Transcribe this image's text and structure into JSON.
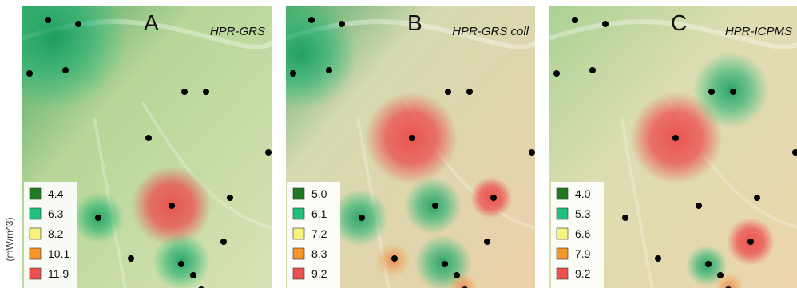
{
  "unit_label": "(mW/m^3)",
  "panels": [
    {
      "letter": "A",
      "title": "HPR-GRS",
      "legend": [
        {
          "label": "4.4",
          "color": "#1f7a22"
        },
        {
          "label": "6.3",
          "color": "#22c07a"
        },
        {
          "label": "8.2",
          "color": "#f6f27c"
        },
        {
          "label": "10.1",
          "color": "#f5952a"
        },
        {
          "label": "11.9",
          "color": "#ec5050"
        }
      ]
    },
    {
      "letter": "B",
      "title": "HPR-GRS coll",
      "legend": [
        {
          "label": "5.0",
          "color": "#1f7a22"
        },
        {
          "label": "6.1",
          "color": "#22c07a"
        },
        {
          "label": "7.2",
          "color": "#f6f27c"
        },
        {
          "label": "8.3",
          "color": "#f5952a"
        },
        {
          "label": "9.2",
          "color": "#ec5050"
        }
      ]
    },
    {
      "letter": "C",
      "title": "HPR-ICPMS",
      "legend": [
        {
          "label": "4.0",
          "color": "#1f7a22"
        },
        {
          "label": "5.3",
          "color": "#22c07a"
        },
        {
          "label": "6.6",
          "color": "#f6f27c"
        },
        {
          "label": "7.9",
          "color": "#f5952a"
        },
        {
          "label": "9.2",
          "color": "#ec5050"
        }
      ]
    }
  ]
}
